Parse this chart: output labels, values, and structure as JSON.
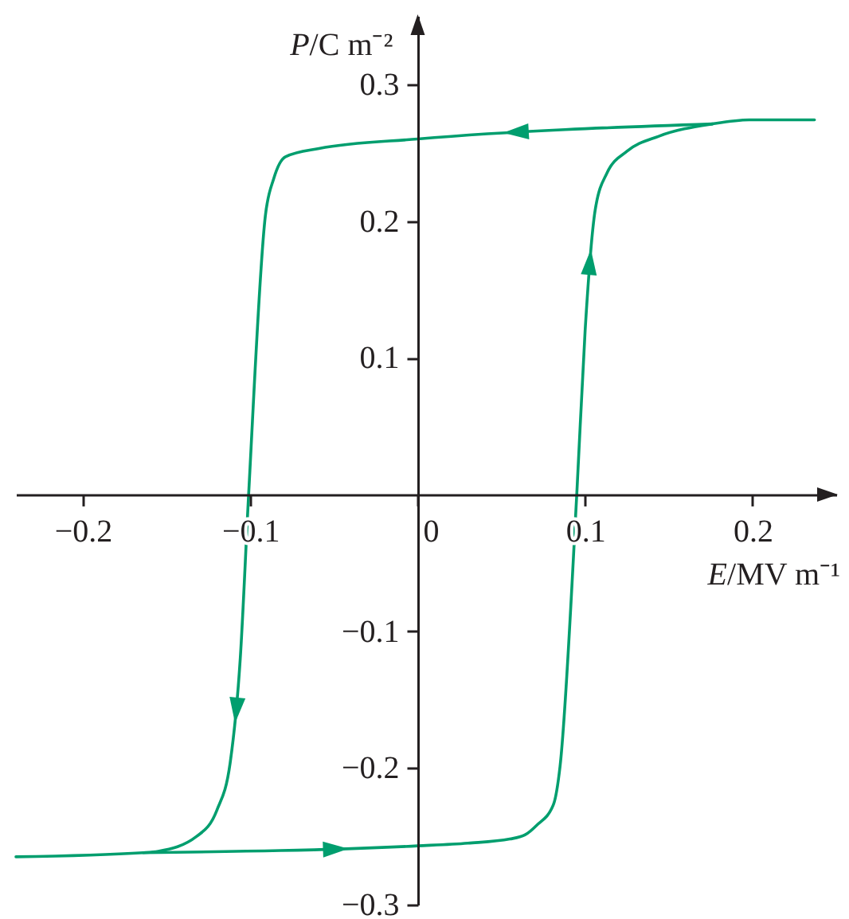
{
  "chart_data": {
    "type": "line",
    "xlabel": "E/MV m⁻¹",
    "ylabel": "P/C m⁻²",
    "series": [
      {
        "color": "#009e6e",
        "x": [
          -0.164,
          0,
          0.03,
          0.055,
          0.064,
          0.071,
          0.081,
          0.085,
          0.095,
          0.1,
          0.106,
          0.113,
          0.125,
          0.144,
          0.176,
          0.198,
          0.237
        ],
        "values": [
          -0.262,
          -0.257,
          -0.255,
          -0.252,
          -0.249,
          -0.242,
          -0.227,
          -0.199,
          0,
          0.12,
          0.208,
          0.235,
          0.251,
          0.262,
          0.271,
          0.274,
          0.274
        ]
      },
      {
        "color": "#009e6e",
        "x": [
          0.176,
          0,
          -0.059,
          -0.079,
          -0.086,
          -0.091,
          -0.101,
          -0.106,
          -0.112,
          -0.12,
          -0.132,
          -0.155,
          -0.164,
          -0.24
        ],
        "values": [
          0.271,
          0.26,
          0.253,
          0.247,
          0.231,
          0.204,
          0,
          -0.12,
          -0.196,
          -0.231,
          -0.25,
          -0.261,
          -0.262,
          -0.265
        ]
      }
    ],
    "xlim": [
      -0.24,
      0.25
    ],
    "ylim": [
      -0.3,
      0.35
    ],
    "xticks": [
      -0.2,
      -0.1,
      0,
      0.1,
      0.2
    ],
    "yticks": [
      -0.3,
      -0.2,
      -0.1,
      0.1,
      0.2,
      0.3
    ]
  }
}
